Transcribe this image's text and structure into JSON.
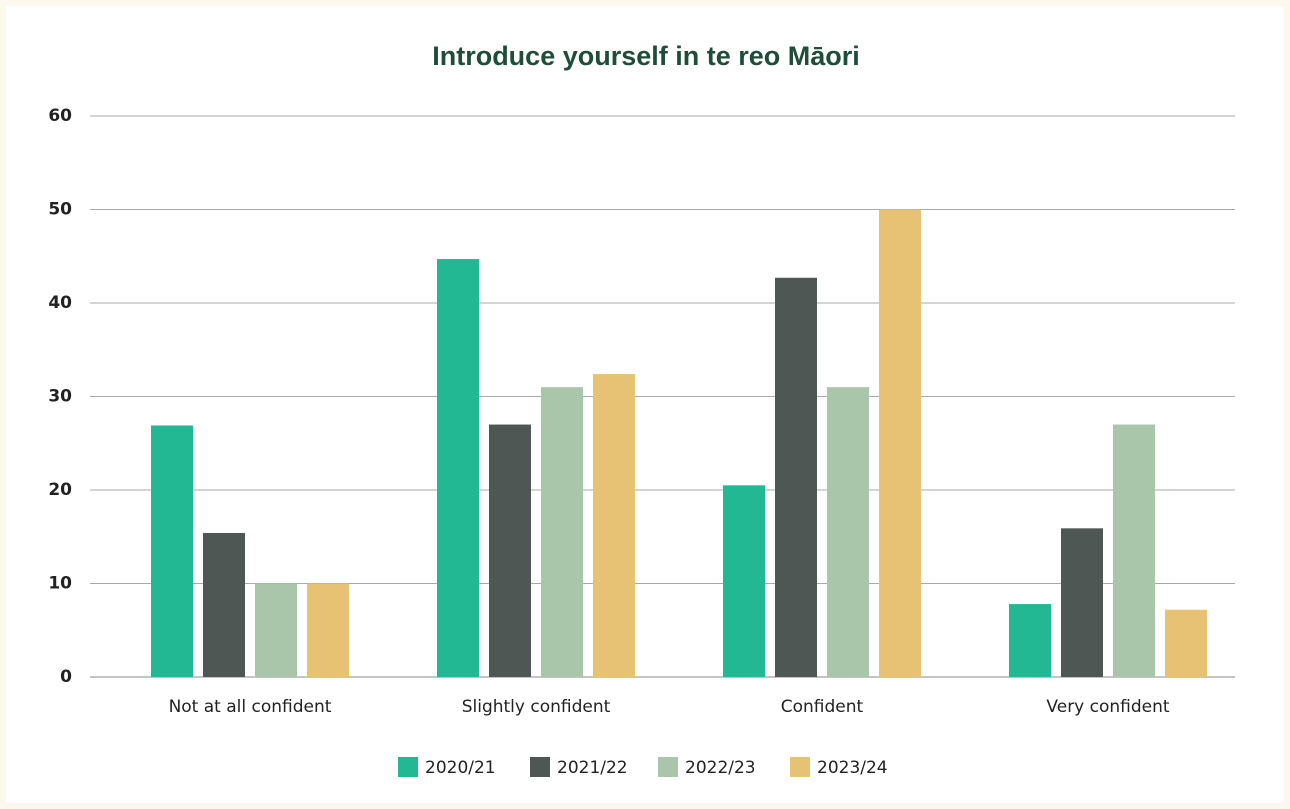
{
  "chart_data": {
    "type": "bar",
    "title": "Introduce yourself in te reo Māori",
    "categories": [
      "Not at all confident",
      "Slightly confident",
      "Confident",
      "Very confident"
    ],
    "series": [
      {
        "name": "2020/21",
        "color": "#21b893",
        "values": [
          26.9,
          44.7,
          20.5,
          7.8
        ]
      },
      {
        "name": "2021/22",
        "color": "#4e5753",
        "values": [
          15.4,
          27,
          42.7,
          15.9
        ]
      },
      {
        "name": "2022/23",
        "color": "#a9c6aa",
        "values": [
          10,
          31,
          31,
          27
        ]
      },
      {
        "name": "2023/24",
        "color": "#e8c274",
        "values": [
          10,
          32.4,
          50,
          7.2
        ]
      }
    ],
    "ylim": [
      0,
      60
    ],
    "yticks": [
      0,
      10,
      20,
      30,
      40,
      50,
      60
    ],
    "grid": true,
    "legend": "bottom"
  }
}
